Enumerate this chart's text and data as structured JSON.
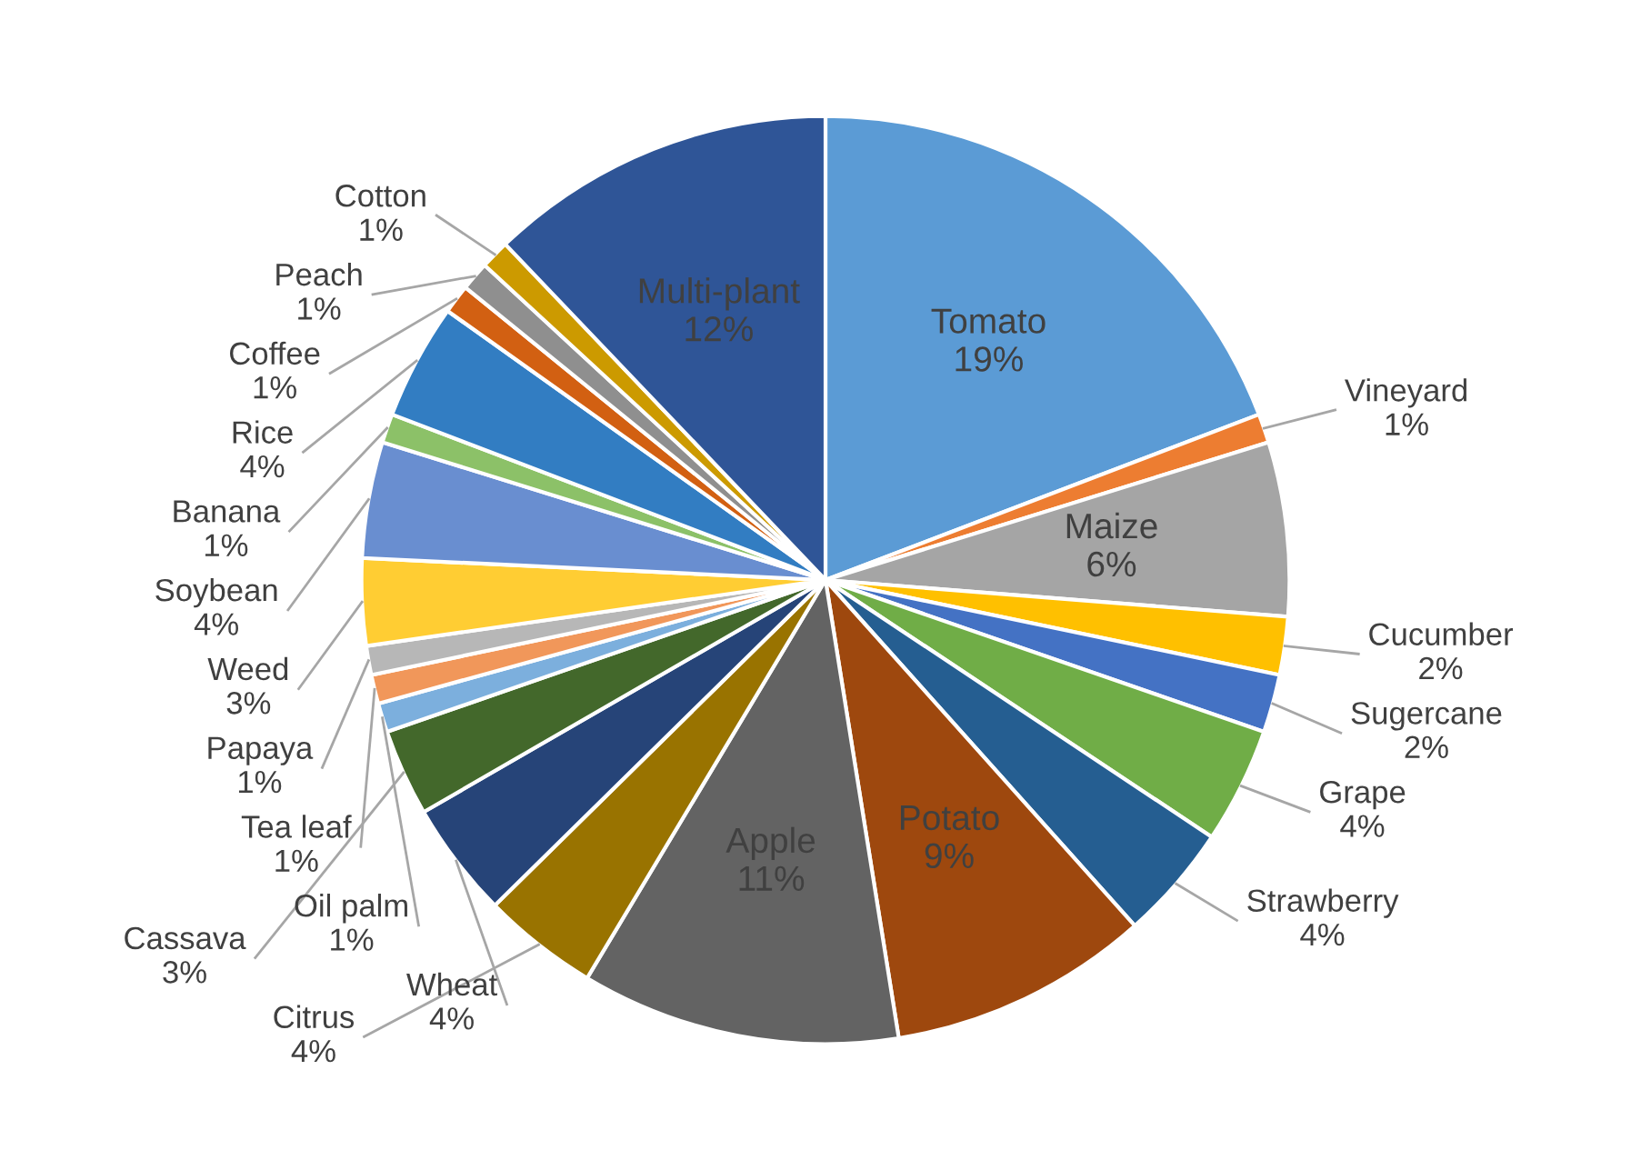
{
  "chart_data": {
    "type": "pie",
    "categories": [
      "Tomato",
      "Vineyard",
      "Maize",
      "Cucumber",
      "Sugercane",
      "Grape",
      "Strawberry",
      "Potato",
      "Apple",
      "Citrus",
      "Wheat",
      "Cassava",
      "Oil palm",
      "Tea leaf",
      "Papaya",
      "Weed",
      "Soybean",
      "Banana",
      "Rice",
      "Coffee",
      "Peach",
      "Cotton",
      "Multi-plant"
    ],
    "values": [
      19,
      1,
      6,
      2,
      2,
      4,
      4,
      9,
      11,
      4,
      4,
      3,
      1,
      1,
      1,
      3,
      4,
      1,
      4,
      1,
      1,
      1,
      12
    ],
    "colors": [
      "#5b9bd5",
      "#ed7d31",
      "#a5a5a5",
      "#ffc000",
      "#4472c4",
      "#70ad47",
      "#255e91",
      "#9e480e",
      "#636363",
      "#997300",
      "#264478",
      "#43682b",
      "#7cafdd",
      "#f1975a",
      "#b7b7b7",
      "#ffcd33",
      "#698ed0",
      "#8cc168",
      "#327dc2",
      "#d26012",
      "#8f8f8f",
      "#cc9a00",
      "#2f5597"
    ],
    "value_labels": [
      "19%",
      "1%",
      "6%",
      "2%",
      "2%",
      "4%",
      "4%",
      "9%",
      "11%",
      "4%",
      "4%",
      "3%",
      "1%",
      "1%",
      "1%",
      "3%",
      "4%",
      "1%",
      "4%",
      "1%",
      "1%",
      "1%",
      "12%"
    ],
    "legend": false
  }
}
